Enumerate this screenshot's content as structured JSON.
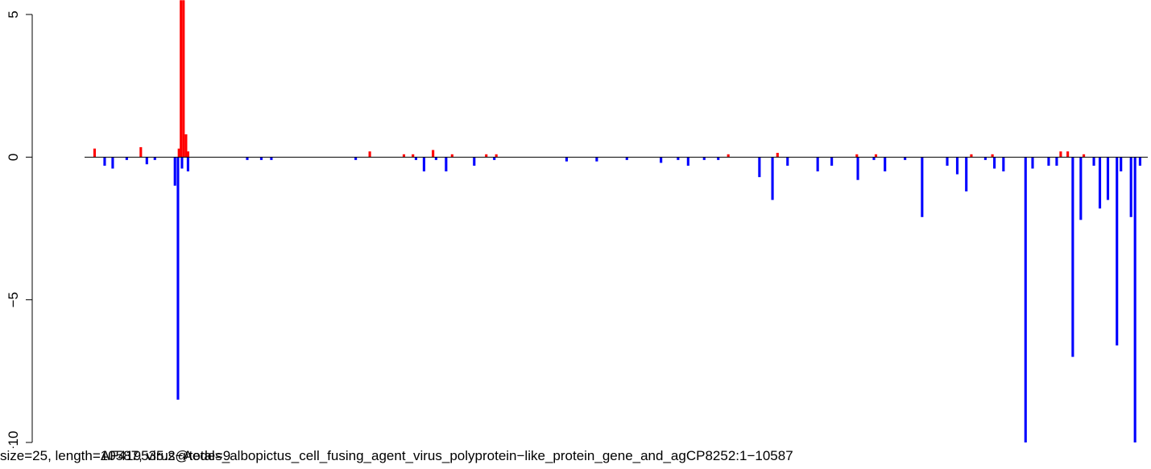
{
  "captions": {
    "left": "size=25, length=10587, virus@total=9",
    "right": "AF419535.2−Aedes_albopictus_cell_fusing_agent_virus_polyprotein−like_protein_gene_and_agCP8252:1−10587"
  },
  "colors": {
    "positive": "#ff0000",
    "negative": "#0000ff",
    "baseline": "#000000"
  },
  "chart_data": {
    "type": "bar",
    "title": "",
    "xlabel": "",
    "ylabel": "",
    "xlim": [
      0,
      10587
    ],
    "ylim": [
      -10,
      5
    ],
    "yticks": [
      -10,
      -5,
      0,
      5
    ],
    "ytick_labels": [
      "−10",
      "−5",
      "0",
      "5"
    ],
    "bin_size": 25,
    "grid": false,
    "series": [
      {
        "color": "positive",
        "values": [
          [
            100,
            0.3
          ],
          [
            560,
            0.35
          ],
          [
            940,
            0.3
          ],
          [
            960,
            5.5
          ],
          [
            985,
            5.5
          ],
          [
            1010,
            0.8
          ],
          [
            1030,
            0.2
          ],
          [
            2840,
            0.2
          ],
          [
            3180,
            0.1
          ],
          [
            3270,
            0.1
          ],
          [
            3470,
            0.25
          ],
          [
            3660,
            0.1
          ],
          [
            4000,
            0.1
          ],
          [
            4100,
            0.1
          ],
          [
            6410,
            0.1
          ],
          [
            6900,
            0.15
          ],
          [
            7690,
            0.1
          ],
          [
            7880,
            0.1
          ],
          [
            8830,
            0.1
          ],
          [
            9040,
            0.1
          ],
          [
            9720,
            0.2
          ],
          [
            9790,
            0.2
          ],
          [
            9950,
            0.1
          ]
        ]
      },
      {
        "color": "negative",
        "values": [
          [
            200,
            -0.3
          ],
          [
            280,
            -0.4
          ],
          [
            420,
            -0.1
          ],
          [
            620,
            -0.25
          ],
          [
            700,
            -0.1
          ],
          [
            900,
            -1.0
          ],
          [
            930,
            -8.5
          ],
          [
            970,
            -0.4
          ],
          [
            1030,
            -0.5
          ],
          [
            1620,
            -0.1
          ],
          [
            1760,
            -0.1
          ],
          [
            1860,
            -0.1
          ],
          [
            2700,
            -0.1
          ],
          [
            3300,
            -0.1
          ],
          [
            3380,
            -0.5
          ],
          [
            3500,
            -0.1
          ],
          [
            3600,
            -0.5
          ],
          [
            3880,
            -0.3
          ],
          [
            4080,
            -0.1
          ],
          [
            4800,
            -0.15
          ],
          [
            5100,
            -0.15
          ],
          [
            5400,
            -0.1
          ],
          [
            5740,
            -0.2
          ],
          [
            5910,
            -0.1
          ],
          [
            6010,
            -0.3
          ],
          [
            6170,
            -0.1
          ],
          [
            6310,
            -0.1
          ],
          [
            6720,
            -0.7
          ],
          [
            6850,
            -1.5
          ],
          [
            7000,
            -0.3
          ],
          [
            7300,
            -0.5
          ],
          [
            7440,
            -0.3
          ],
          [
            7700,
            -0.8
          ],
          [
            7860,
            -0.1
          ],
          [
            7970,
            -0.5
          ],
          [
            8170,
            -0.1
          ],
          [
            8340,
            -2.1
          ],
          [
            8590,
            -0.3
          ],
          [
            8690,
            -0.6
          ],
          [
            8780,
            -1.2
          ],
          [
            8970,
            -0.1
          ],
          [
            9060,
            -0.4
          ],
          [
            9150,
            -0.5
          ],
          [
            9370,
            -10.0
          ],
          [
            9440,
            -0.4
          ],
          [
            9600,
            -0.3
          ],
          [
            9680,
            -0.3
          ],
          [
            9840,
            -7.0
          ],
          [
            9920,
            -2.2
          ],
          [
            10050,
            -0.3
          ],
          [
            10110,
            -1.8
          ],
          [
            10190,
            -1.5
          ],
          [
            10280,
            -6.6
          ],
          [
            10320,
            -0.5
          ],
          [
            10420,
            -2.1
          ],
          [
            10460,
            -10.0
          ],
          [
            10510,
            -0.3
          ]
        ]
      }
    ]
  }
}
